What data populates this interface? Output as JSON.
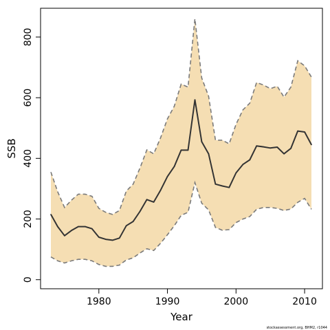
{
  "chart_data": {
    "type": "line",
    "xlabel": "Year",
    "ylabel": "SSB",
    "xlim": [
      1971.5,
      2012.6
    ],
    "ylim": [
      -30,
      895
    ],
    "x_ticks": [
      1980,
      1990,
      2000,
      2010
    ],
    "y_ticks": [
      0,
      200,
      400,
      600,
      800
    ],
    "grid": false,
    "band_color": "#f5deb3",
    "line_color": "#333333",
    "bound_color": "#7a7a7a",
    "footer": "stockassessment.org, BHM2, r1044",
    "x": [
      1973,
      1974,
      1975,
      1976,
      1977,
      1978,
      1979,
      1980,
      1981,
      1982,
      1983,
      1984,
      1985,
      1986,
      1987,
      1988,
      1989,
      1990,
      1991,
      1992,
      1993,
      1994,
      1995,
      1996,
      1997,
      1998,
      1999,
      2000,
      2001,
      2002,
      2003,
      2004,
      2005,
      2006,
      2007,
      2008,
      2009,
      2010,
      2011
    ],
    "ssb": [
      215,
      175,
      145,
      162,
      175,
      175,
      168,
      140,
      133,
      130,
      137,
      178,
      192,
      225,
      264,
      256,
      295,
      340,
      373,
      427,
      427,
      593,
      455,
      415,
      315,
      309,
      304,
      352,
      380,
      395,
      441,
      438,
      434,
      437,
      415,
      433,
      490,
      487,
      445
    ],
    "upper": [
      355,
      290,
      238,
      262,
      282,
      282,
      275,
      235,
      222,
      215,
      228,
      292,
      315,
      368,
      428,
      415,
      468,
      530,
      572,
      645,
      635,
      860,
      665,
      605,
      460,
      460,
      448,
      512,
      560,
      582,
      650,
      642,
      630,
      638,
      602,
      635,
      722,
      705,
      668
    ],
    "lower": [
      75,
      62,
      55,
      62,
      67,
      67,
      62,
      50,
      44,
      44,
      48,
      65,
      72,
      88,
      102,
      96,
      120,
      148,
      178,
      212,
      222,
      320,
      252,
      230,
      172,
      163,
      165,
      188,
      200,
      208,
      232,
      238,
      238,
      235,
      228,
      233,
      255,
      268,
      232
    ]
  }
}
